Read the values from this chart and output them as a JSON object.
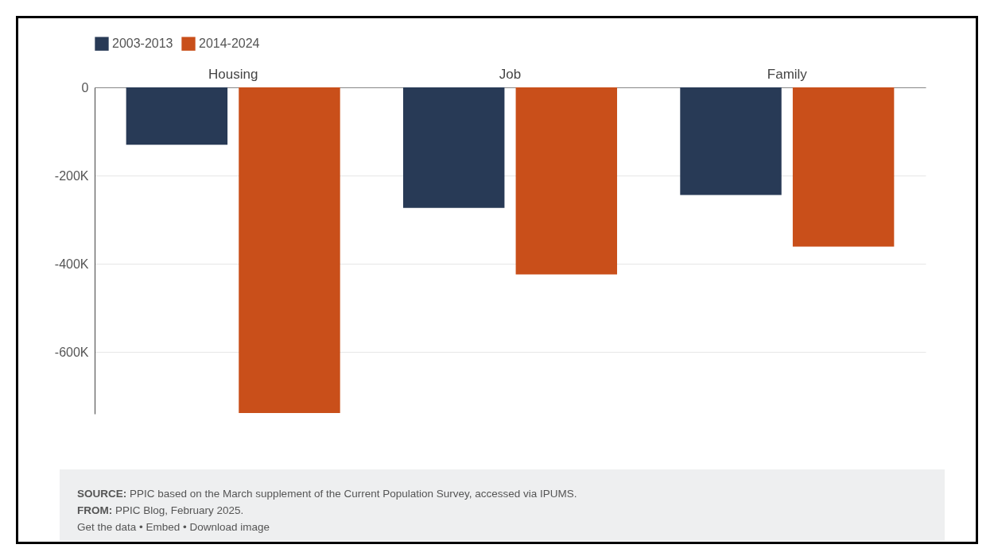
{
  "chart_data": {
    "type": "bar",
    "categories": [
      "Housing",
      "Job",
      "Family"
    ],
    "series": [
      {
        "name": "2003-2013",
        "color": "#283a56",
        "values": [
          -130000,
          -273000,
          -244000
        ]
      },
      {
        "name": "2014-2024",
        "color": "#c94f1a",
        "values": [
          -738000,
          -424000,
          -361000
        ]
      }
    ],
    "ylim": [
      -740000,
      0
    ],
    "yticks": [
      {
        "value": -600000,
        "label": "-600K"
      },
      {
        "value": -400000,
        "label": "-400K"
      },
      {
        "value": -200000,
        "label": "-200K"
      },
      0
    ],
    "grid": "y",
    "legend": "top left",
    "annotations": [
      "SOURCE: PPIC based on the March supplement of the Current Population Survey, accessed via IPUMS.",
      "FROM: PPIC Blog, February 2025.",
      "Get the data • Embed • Download image"
    ]
  }
}
